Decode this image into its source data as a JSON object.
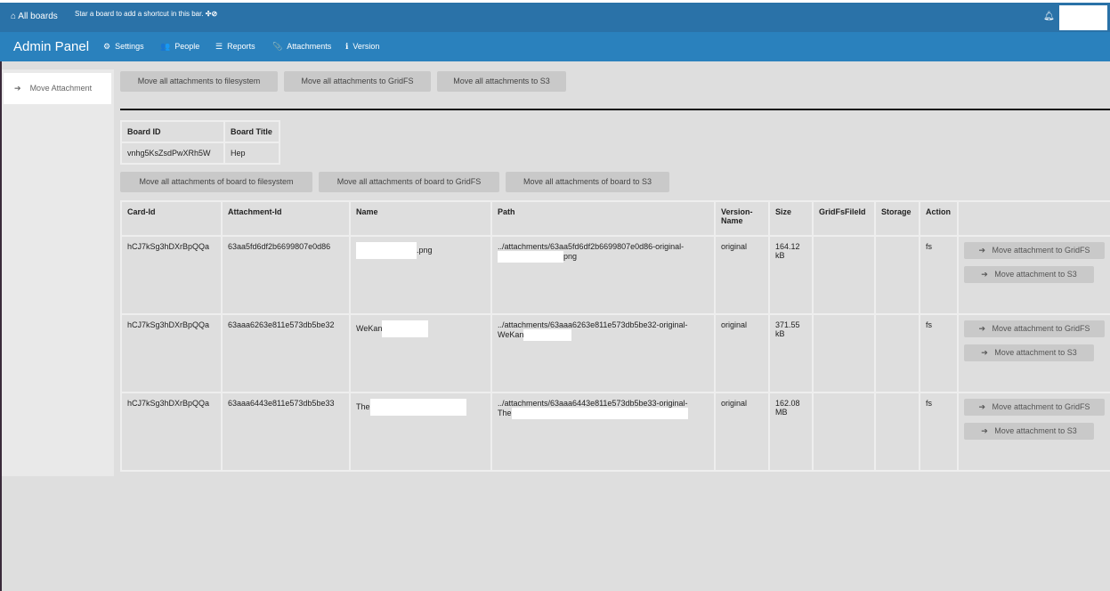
{
  "topbar": {
    "all_boards": "All boards",
    "hint": "Star a board to add a shortcut in this bar."
  },
  "header": {
    "title": "Admin Panel",
    "nav": [
      {
        "label": "Settings",
        "icon": "⚙"
      },
      {
        "label": "People",
        "icon": "👥"
      },
      {
        "label": "Reports",
        "icon": "☰"
      },
      {
        "label": "Attachments",
        "icon": "📎"
      },
      {
        "label": "Version",
        "icon": "ℹ"
      }
    ]
  },
  "sidebar": {
    "item": "Move Attachment"
  },
  "global_buttons": [
    "Move all attachments to filesystem",
    "Move all attachments to GridFS",
    "Move all attachments to S3"
  ],
  "board_table": {
    "headers": [
      "Board ID",
      "Board Title"
    ],
    "row": [
      "vnhg5KsZsdPwXRh5W",
      "Hep"
    ]
  },
  "board_buttons": [
    "Move all attachments of board to filesystem",
    "Move all attachments of board to GridFS",
    "Move all attachments of board to S3"
  ],
  "attachments": {
    "headers": [
      "Card-Id",
      "Attachment-Id",
      "Name",
      "Path",
      "Version-Name",
      "Size",
      "GridFsFileId",
      "Storage",
      "Action"
    ],
    "rows": [
      {
        "card": "hCJ7kSg3hDXrBpQQa",
        "id": "63aa5fd6df2b6699807e0d86",
        "name": ".png",
        "path": "../attachments/63aa5fd6df2b6699807e0d86-original-",
        "path2": "png",
        "version": "original",
        "size": "164.12 kB",
        "gridfs": "",
        "storage": "fs"
      },
      {
        "card": "hCJ7kSg3hDXrBpQQa",
        "id": "63aaa6263e811e573db5be32",
        "name": "WeKan",
        "path": "../attachments/63aaa6263e811e573db5be32-original-",
        "path2": "WeKan",
        "version": "original",
        "size": "371.55 kB",
        "gridfs": "",
        "storage": "fs"
      },
      {
        "card": "hCJ7kSg3hDXrBpQQa",
        "id": "63aaa6443e811e573db5be33",
        "name": "The",
        "path": "../attachments/63aaa6443e811e573db5be33-original-",
        "path2": "The",
        "version": "original",
        "size": "162.08 MB",
        "gridfs": "",
        "storage": "fs"
      }
    ],
    "move_gridfs": "Move attachment to GridFS",
    "move_s3": "Move attachment to S3"
  }
}
